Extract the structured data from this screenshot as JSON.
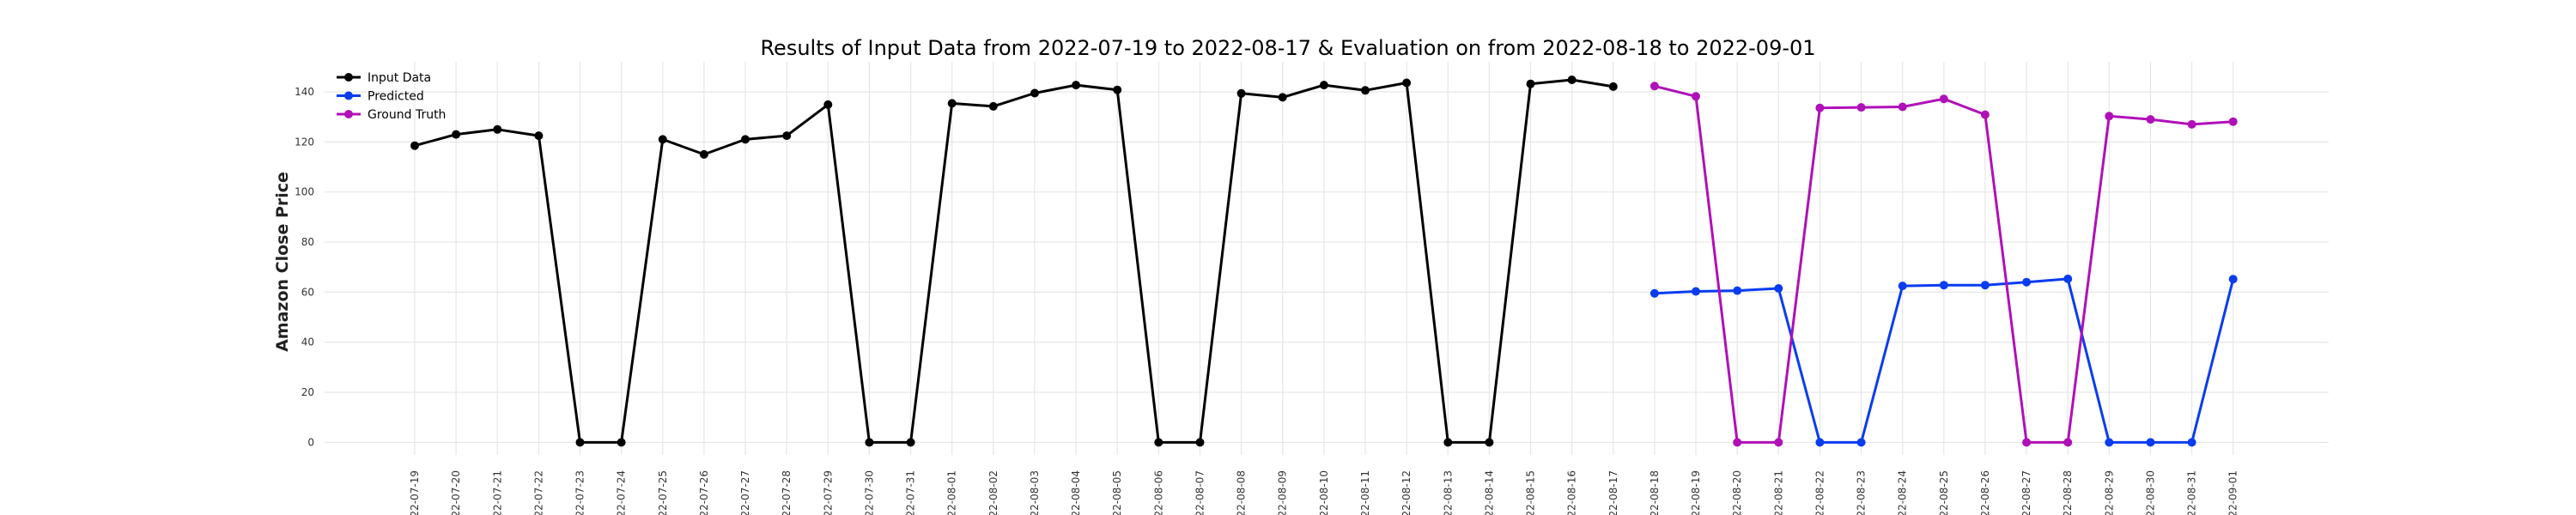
{
  "chart_data": {
    "type": "line",
    "title": "Results of Input Data from 2022-07-19 to 2022-08-17 & Evaluation on from 2022-08-18 to 2022-09-01",
    "xlabel": "",
    "ylabel": "Amazon Close Price",
    "ylim": [
      -5,
      152
    ],
    "yticks": [
      0,
      20,
      40,
      60,
      80,
      100,
      120,
      140
    ],
    "grid": true,
    "legend_position": "top-left",
    "dates": [
      "2022-07-19",
      "2022-07-20",
      "2022-07-21",
      "2022-07-22",
      "2022-07-23",
      "2022-07-24",
      "2022-07-25",
      "2022-07-26",
      "2022-07-27",
      "2022-07-28",
      "2022-07-29",
      "2022-07-30",
      "2022-07-31",
      "2022-08-01",
      "2022-08-02",
      "2022-08-03",
      "2022-08-04",
      "2022-08-05",
      "2022-08-06",
      "2022-08-07",
      "2022-08-08",
      "2022-08-09",
      "2022-08-10",
      "2022-08-11",
      "2022-08-12",
      "2022-08-13",
      "2022-08-14",
      "2022-08-15",
      "2022-08-16",
      "2022-08-17",
      "2022-08-18",
      "2022-08-19",
      "2022-08-20",
      "2022-08-21",
      "2022-08-22",
      "2022-08-23",
      "2022-08-24",
      "2022-08-25",
      "2022-08-26",
      "2022-08-27",
      "2022-08-28",
      "2022-08-29",
      "2022-08-30",
      "2022-08-31",
      "2022-09-01"
    ],
    "tick_labels": [
      "22-07-19",
      "22-07-20",
      "22-07-21",
      "22-07-22",
      "22-07-23",
      "22-07-24",
      "22-07-25",
      "22-07-26",
      "22-07-27",
      "22-07-28",
      "22-07-29",
      "22-07-30",
      "22-07-31",
      "22-08-01",
      "22-08-02",
      "22-08-03",
      "22-08-04",
      "22-08-05",
      "22-08-06",
      "22-08-07",
      "22-08-08",
      "22-08-09",
      "22-08-10",
      "22-08-11",
      "22-08-12",
      "22-08-13",
      "22-08-14",
      "22-08-15",
      "22-08-16",
      "22-08-17",
      "22-08-18",
      "22-08-19",
      "22-08-20",
      "22-08-21",
      "22-08-22",
      "22-08-23",
      "22-08-24",
      "22-08-25",
      "22-08-26",
      "22-08-27",
      "22-08-28",
      "22-08-29",
      "22-08-30",
      "22-08-31",
      "22-09-01"
    ],
    "series": [
      {
        "name": "Input Data",
        "color": "#000000",
        "x": [
          "2022-07-19",
          "2022-07-20",
          "2022-07-21",
          "2022-07-22",
          "2022-07-23",
          "2022-07-24",
          "2022-07-25",
          "2022-07-26",
          "2022-07-27",
          "2022-07-28",
          "2022-07-29",
          "2022-07-30",
          "2022-07-31",
          "2022-08-01",
          "2022-08-02",
          "2022-08-03",
          "2022-08-04",
          "2022-08-05",
          "2022-08-06",
          "2022-08-07",
          "2022-08-08",
          "2022-08-09",
          "2022-08-10",
          "2022-08-11",
          "2022-08-12",
          "2022-08-13",
          "2022-08-14",
          "2022-08-15",
          "2022-08-16",
          "2022-08-17"
        ],
        "values": [
          118.5,
          123.0,
          125.0,
          122.5,
          0,
          0,
          121.0,
          115.0,
          121.0,
          122.5,
          134.9,
          0,
          0,
          135.4,
          134.2,
          139.5,
          142.7,
          140.8,
          0,
          0,
          139.4,
          137.8,
          142.7,
          140.6,
          143.6,
          0,
          0,
          143.2,
          144.8,
          142.1
        ]
      },
      {
        "name": "Predicted",
        "color": "#0a3cf0",
        "x": [
          "2022-08-18",
          "2022-08-19",
          "2022-08-20",
          "2022-08-21",
          "2022-08-22",
          "2022-08-23",
          "2022-08-24",
          "2022-08-25",
          "2022-08-26",
          "2022-08-27",
          "2022-08-28",
          "2022-08-29",
          "2022-08-30",
          "2022-08-31",
          "2022-09-01"
        ],
        "values": [
          59.5,
          60.3,
          60.6,
          61.5,
          0,
          0,
          62.5,
          62.8,
          62.8,
          64.0,
          65.3,
          0,
          0,
          0,
          65.2
        ]
      },
      {
        "name": "Ground Truth",
        "color": "#b010b8",
        "x": [
          "2022-08-18",
          "2022-08-19",
          "2022-08-20",
          "2022-08-21",
          "2022-08-22",
          "2022-08-23",
          "2022-08-24",
          "2022-08-25",
          "2022-08-26",
          "2022-08-27",
          "2022-08-28",
          "2022-08-29",
          "2022-08-30",
          "2022-08-31",
          "2022-09-01"
        ],
        "values": [
          142.3,
          138.2,
          0,
          0,
          133.6,
          133.8,
          134.0,
          137.2,
          130.9,
          0,
          0,
          130.3,
          129.0,
          127.0,
          128.1
        ]
      }
    ]
  }
}
